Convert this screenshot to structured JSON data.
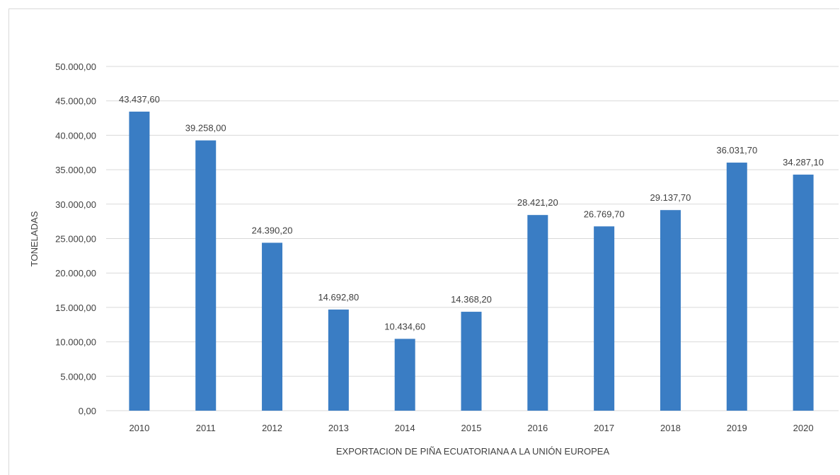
{
  "chart_data": {
    "type": "bar",
    "title": "",
    "xlabel": "EXPORTACION  DE PIÑA ECUATORIANA  A LA UNIÓN EUROPEA",
    "ylabel": "TONELADAS",
    "categories": [
      "2010",
      "2011",
      "2012",
      "2013",
      "2014",
      "2015",
      "2016",
      "2017",
      "2018",
      "2019",
      "2020"
    ],
    "values": [
      43437.6,
      39258.0,
      24390.2,
      14692.8,
      10434.6,
      14368.2,
      28421.2,
      26769.7,
      29137.7,
      36031.7,
      34287.1
    ],
    "data_labels": [
      "43.437,60",
      "39.258,00",
      "24.390,20",
      "14.692,80",
      "10.434,60",
      "14.368,20",
      "28.421,20",
      "26.769,70",
      "29.137,70",
      "36.031,70",
      "34.287,10"
    ],
    "yticks": [
      "0,00",
      "5.000,00",
      "10.000,00",
      "15.000,00",
      "20.000,00",
      "25.000,00",
      "30.000,00",
      "35.000,00",
      "40.000,00",
      "45.000,00",
      "50.000,00"
    ],
    "ylim": [
      0,
      50000
    ],
    "grid": true,
    "legend": "none",
    "colors": {
      "bar": "#3a7dc4",
      "grid": "#d9d9d9",
      "text": "#404040"
    }
  }
}
